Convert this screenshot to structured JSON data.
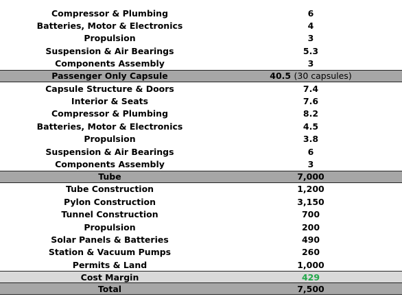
{
  "pod_top": {
    "rows": [
      {
        "item": "Compressor & Plumbing",
        "value": "6"
      },
      {
        "item": "Batteries, Motor & Electronics",
        "value": "4"
      },
      {
        "item": "Propulsion",
        "value": "3"
      },
      {
        "item": "Suspension & Air Bearings",
        "value": "5.3"
      },
      {
        "item": "Components Assembly",
        "value": "3"
      }
    ]
  },
  "passenger": {
    "header": {
      "label": "Passenger Only Capsule",
      "value": "40.5",
      "note": "(30 capsules)"
    },
    "rows": [
      {
        "item": "Capsule Structure & Doors",
        "value": "7.4"
      },
      {
        "item": "Interior & Seats",
        "value": "7.6"
      },
      {
        "item": "Compressor & Plumbing",
        "value": "8.2"
      },
      {
        "item": "Batteries, Motor & Electronics",
        "value": "4.5"
      },
      {
        "item": "Propulsion",
        "value": "3.8"
      },
      {
        "item": "Suspension & Air Bearings",
        "value": "6"
      },
      {
        "item": "Components Assembly",
        "value": "3"
      }
    ]
  },
  "tube": {
    "header": {
      "label": "Tube",
      "value": "7,000"
    },
    "rows": [
      {
        "item": "Tube Construction",
        "value": "1,200"
      },
      {
        "item": "Pylon Construction",
        "value": "3,150"
      },
      {
        "item": "Tunnel Construction",
        "value": "700"
      },
      {
        "item": "Propulsion",
        "value": "200"
      },
      {
        "item": "Solar Panels & Batteries",
        "value": "490"
      },
      {
        "item": "Station & Vacuum Pumps",
        "value": "260"
      },
      {
        "item": "Permits & Land",
        "value": "1,000"
      }
    ]
  },
  "margin": {
    "label": "Cost Margin",
    "value": "429",
    "value_color": "#22a84a"
  },
  "total": {
    "label": "Total",
    "value": "7,500"
  }
}
